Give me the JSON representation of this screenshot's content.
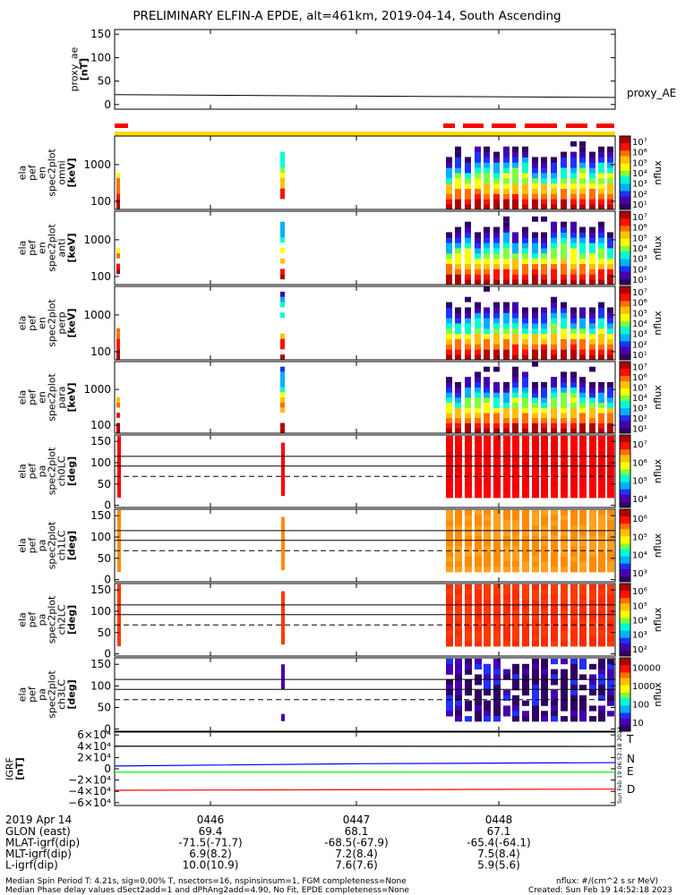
{
  "title": "PRELIMINARY ELFIN-A EPDE, alt=461km, 2019-04-14, South Ascending",
  "colors": {
    "background": "#ffffff",
    "sci_zone_bar": "#ffd700",
    "fast_bar": "#ff0000",
    "T": "#000000",
    "N": "#0000ff",
    "E": "#00ff00",
    "D": "#ff0000",
    "colormap": [
      "#300060",
      "#4400b0",
      "#2030ff",
      "#00b0ff",
      "#00ffd0",
      "#80ff40",
      "#ffff00",
      "#ffc000",
      "#ff7000",
      "#ff1000",
      "#b00000"
    ]
  },
  "chart_data": [
    {
      "name": "proxy_ae",
      "type": "line",
      "ylabel": [
        "proxy_ae",
        "[nT]"
      ],
      "ylim": [
        -10,
        160
      ],
      "yticks": [
        "150",
        "100",
        "50",
        "0"
      ],
      "ytick_values": [
        150,
        100,
        50,
        0
      ],
      "series_label": "proxy_AE",
      "x_min": [
        0.0,
        0.16,
        0.33,
        0.5,
        0.66,
        0.84,
        1.0
      ],
      "y": [
        21,
        20,
        19,
        18,
        17,
        16,
        15
      ]
    },
    {
      "name": "ela_pef_en_spec2plot_omni",
      "type": "heatmap",
      "ylabel": [
        "ela",
        "pef",
        "en",
        "spec2plot",
        "omni",
        "[keV]"
      ],
      "yticks": [
        "1000",
        "100"
      ],
      "ytick_values": [
        1000,
        100
      ],
      "ylim_keV": [
        60,
        6000
      ],
      "zlabel": "nflux",
      "zticks": [
        "10¹",
        "10²",
        "10³",
        "10⁴",
        "10⁵",
        "10⁶",
        "10⁷"
      ]
    },
    {
      "name": "ela_pef_en_spec2plot_anti",
      "type": "heatmap",
      "ylabel": [
        "ela",
        "pef",
        "en",
        "spec2plot",
        "anti",
        "[keV]"
      ],
      "yticks": [
        "1000",
        "100"
      ],
      "ytick_values": [
        1000,
        100
      ],
      "zlabel": "nflux",
      "zticks": [
        "10¹",
        "10²",
        "10³",
        "10⁴",
        "10⁵",
        "10⁶",
        "10⁷"
      ]
    },
    {
      "name": "ela_pef_en_spec2plot_perp",
      "type": "heatmap",
      "ylabel": [
        "ela",
        "pef",
        "en",
        "spec2plot",
        "perp",
        "[keV]"
      ],
      "yticks": [
        "1000",
        "100"
      ],
      "ytick_values": [
        1000,
        100
      ],
      "zlabel": "nflux",
      "zticks": [
        "10¹",
        "10²",
        "10³",
        "10⁴",
        "10⁵",
        "10⁶",
        "10⁷"
      ]
    },
    {
      "name": "ela_pef_en_spec2plot_para",
      "type": "heatmap",
      "ylabel": [
        "ela",
        "pef",
        "en",
        "spec2plot",
        "para",
        "[keV]"
      ],
      "yticks": [
        "1000",
        "100"
      ],
      "ytick_values": [
        1000,
        100
      ],
      "zlabel": "nflux",
      "zticks": [
        "10¹",
        "10²",
        "10³",
        "10⁴",
        "10⁵",
        "10⁶",
        "10⁷"
      ]
    },
    {
      "name": "ela_pef_pa_spec2plot_ch0LC",
      "type": "heatmap",
      "ylabel": [
        "ela",
        "pef",
        "pa",
        "spec2plot",
        "ch0LC",
        "[deg]"
      ],
      "yticks": [
        "150",
        "100",
        "50",
        "0"
      ],
      "ytick_values": [
        150,
        100,
        50,
        0
      ],
      "zlabel": "nflux",
      "zticks": [
        "10⁴",
        "10⁵",
        "10⁶",
        "10⁷"
      ]
    },
    {
      "name": "ela_pef_pa_spec2plot_ch1LC",
      "type": "heatmap",
      "ylabel": [
        "ela",
        "pef",
        "pa",
        "spec2plot",
        "ch1LC",
        "[deg]"
      ],
      "yticks": [
        "150",
        "100",
        "50",
        "0"
      ],
      "ytick_values": [
        150,
        100,
        50,
        0
      ],
      "zlabel": "nflux",
      "zticks": [
        "10³",
        "10⁴",
        "10⁵",
        "10⁶"
      ]
    },
    {
      "name": "ela_pef_pa_spec2plot_ch2LC",
      "type": "heatmap",
      "ylabel": [
        "ela",
        "pef",
        "pa",
        "spec2plot",
        "ch2LC",
        "[deg]"
      ],
      "yticks": [
        "150",
        "100",
        "50",
        "0"
      ],
      "ytick_values": [
        150,
        100,
        50,
        0
      ],
      "zlabel": "nflux",
      "zticks": [
        "10²",
        "10³",
        "10⁴",
        "10⁵",
        "10⁶"
      ]
    },
    {
      "name": "ela_pef_pa_spec2plot_ch3LC",
      "type": "heatmap",
      "ylabel": [
        "ela",
        "pef",
        "pa",
        "spec2plot",
        "ch3LC",
        "[deg]"
      ],
      "yticks": [
        "150",
        "100",
        "50",
        "0"
      ],
      "ytick_values": [
        150,
        100,
        50,
        0
      ],
      "zlabel": "nflux",
      "zticks": [
        "10",
        "100",
        "1000",
        "10000"
      ]
    },
    {
      "name": "IGRF",
      "type": "line",
      "ylabel": [
        "IGRF",
        "[nT]"
      ],
      "yticks": [
        "6×10⁴",
        "4×10⁴",
        "2×10⁴",
        "0",
        "−2×10⁴",
        "−4×10⁴",
        "−6×10⁴"
      ],
      "ytick_values": [
        60000,
        40000,
        20000,
        0,
        -20000,
        -40000,
        -60000
      ],
      "ylim": [
        -65000,
        65000
      ],
      "series": [
        {
          "name": "T",
          "values": [
            40000,
            40000,
            39500
          ]
        },
        {
          "name": "N",
          "values": [
            5000,
            9000,
            11000
          ]
        },
        {
          "name": "E",
          "values": [
            -6000,
            -6000,
            -6000
          ]
        },
        {
          "name": "D",
          "values": [
            -38000,
            -37000,
            -36000
          ]
        }
      ]
    }
  ],
  "time_axis": {
    "date_label": "2019 Apr 14",
    "ticks": [
      "0446",
      "0447",
      "0448"
    ],
    "rows": [
      {
        "label": "GLON (east)",
        "values": [
          "69.4",
          "68.1",
          "67.1"
        ]
      },
      {
        "label": "MLAT-igrf(dip)",
        "values": [
          "-71.5(-71.7)",
          "-68.5(-67.9)",
          "-65.4(-64.1)"
        ]
      },
      {
        "label": "MLT-igrf(dip)",
        "values": [
          "6.9(8.2)",
          "7.2(8.4)",
          "7.5(8.4)"
        ]
      },
      {
        "label": "L-igrf(dip)",
        "values": [
          "10.0(10.9)",
          "7.6(7.6)",
          "5.9(5.6)"
        ]
      }
    ]
  },
  "footer": {
    "line1": "Median Spin Period T: 4.21s, sig=0.00% T, nsectors=16, nspinsinsum=1, FGM completeness=None",
    "line2": "Median Phase delay values dSect2add=1 and dPhAng2add=4.90, No Fit, EPDE completeness=None",
    "units": "nflux: #/(cm^2 s sr MeV)",
    "created": "Created: Sun Feb 19 14:52:18 2023",
    "vertical_stamp": "Sun Feb 19 06:52:18 2023"
  }
}
